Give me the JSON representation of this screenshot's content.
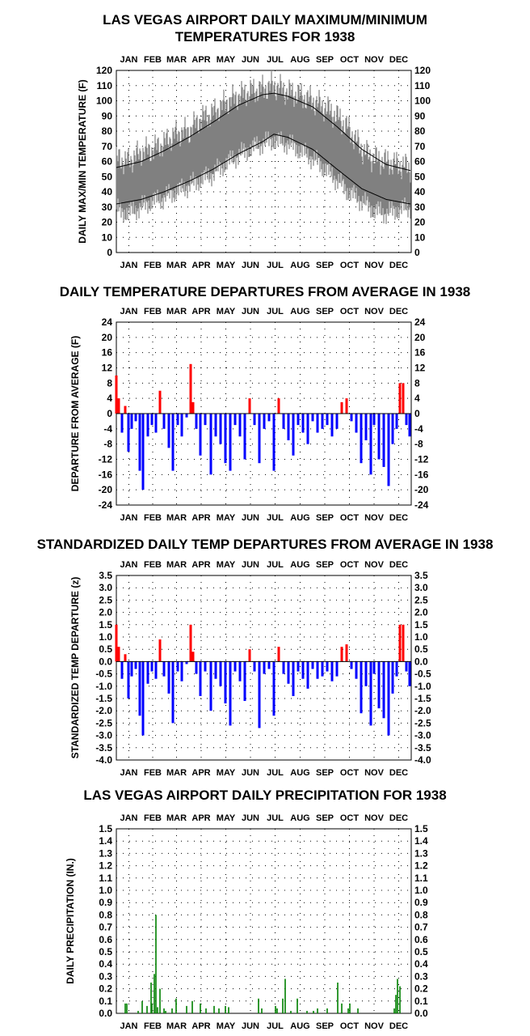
{
  "chart_data": [
    {
      "type": "area",
      "title": [
        "LAS VEGAS AIRPORT DAILY MAXIMUM/MINIMUM",
        "TEMPERATURES FOR 1938"
      ],
      "ylabel": "DAILY MAX/MIN TEMPERATURE (F)",
      "months": [
        "JAN",
        "FEB",
        "MAR",
        "APR",
        "MAY",
        "JUN",
        "JUL",
        "AUG",
        "SEP",
        "OCT",
        "NOV",
        "DEC"
      ],
      "ylim": [
        0,
        120
      ],
      "yticks": [
        "0",
        "10",
        "20",
        "30",
        "40",
        "50",
        "60",
        "70",
        "80",
        "90",
        "100",
        "110",
        "120"
      ],
      "grid": true,
      "series": [
        {
          "role": "observed max/min range band",
          "color": "#808080",
          "x": [
            1,
            15,
            32,
            46,
            60,
            74,
            91,
            105,
            121,
            135,
            152,
            166,
            182,
            196,
            213,
            227,
            244,
            258,
            274,
            288,
            305,
            319,
            335,
            349,
            365
          ],
          "max": [
            62,
            60,
            66,
            68,
            72,
            78,
            80,
            88,
            92,
            98,
            103,
            106,
            108,
            110,
            106,
            104,
            100,
            96,
            90,
            82,
            68,
            62,
            60,
            58,
            56
          ],
          "min": [
            28,
            26,
            30,
            34,
            36,
            40,
            44,
            48,
            52,
            58,
            64,
            68,
            72,
            74,
            72,
            68,
            62,
            56,
            48,
            40,
            34,
            28,
            26,
            28,
            30
          ]
        },
        {
          "role": "normal maximum",
          "color": "#000000",
          "x": [
            1,
            32,
            60,
            91,
            121,
            152,
            182,
            196,
            213,
            244,
            274,
            305,
            335,
            365
          ],
          "y": [
            56,
            60,
            67,
            76,
            86,
            97,
            104,
            105,
            103,
            96,
            83,
            68,
            58,
            54
          ]
        },
        {
          "role": "normal minimum",
          "color": "#000000",
          "x": [
            1,
            32,
            60,
            91,
            121,
            152,
            182,
            196,
            213,
            244,
            274,
            305,
            335,
            365
          ],
          "y": [
            32,
            35,
            40,
            47,
            55,
            65,
            73,
            78,
            76,
            68,
            55,
            42,
            35,
            32
          ]
        }
      ]
    },
    {
      "type": "bar",
      "title": [
        "DAILY TEMPERATURE DEPARTURES FROM AVERAGE IN 1938"
      ],
      "ylabel": "DEPARTURE FROM AVERAGE (F)",
      "months": [
        "JAN",
        "FEB",
        "MAR",
        "APR",
        "MAY",
        "JUN",
        "JUL",
        "AUG",
        "SEP",
        "OCT",
        "NOV",
        "DEC"
      ],
      "ylim": [
        -24,
        24
      ],
      "yticks": [
        "-24",
        "-20",
        "-16",
        "-12",
        "-8",
        "-4",
        "0",
        "4",
        "8",
        "12",
        "16",
        "20",
        "24"
      ],
      "grid": true,
      "colors": {
        "positive": "#ff0000",
        "negative": "#0000ff"
      },
      "x": [
        1,
        4,
        8,
        12,
        16,
        20,
        25,
        30,
        34,
        40,
        45,
        50,
        55,
        60,
        66,
        71,
        77,
        82,
        88,
        93,
        96,
        100,
        105,
        111,
        118,
        124,
        130,
        136,
        142,
        148,
        154,
        160,
        166,
        172,
        178,
        184,
        190,
        196,
        202,
        208,
        214,
        220,
        226,
        232,
        238,
        244,
        250,
        256,
        262,
        268,
        274,
        280,
        286,
        292,
        298,
        304,
        310,
        316,
        320,
        326,
        332,
        338,
        343,
        348,
        352,
        356,
        360,
        364
      ],
      "values": [
        10,
        4,
        -5,
        2,
        -10,
        -4,
        -2,
        -15,
        -20,
        -6,
        -3,
        -5,
        6,
        -4,
        -9,
        -15,
        -3,
        -6,
        -1,
        13,
        3,
        -4,
        -11,
        -3,
        -16,
        -6,
        -8,
        -13,
        -15,
        -3,
        -6,
        -12,
        4,
        -3,
        -13,
        -4,
        -2,
        -15,
        4,
        -4,
        -7,
        -11,
        -3,
        -5,
        -8,
        -2,
        -5,
        -4,
        -3,
        -6,
        -4,
        3,
        4,
        -2,
        -5,
        -13,
        -7,
        -16,
        -3,
        -12,
        -14,
        -19,
        -8,
        -4,
        8,
        8,
        -3,
        -6
      ]
    },
    {
      "type": "bar",
      "title": [
        "STANDARDIZED DAILY TEMP DEPARTURES FROM AVERAGE IN 1938"
      ],
      "ylabel": "STANDARDIZED TEMP DEPARTURE (z)",
      "months": [
        "JAN",
        "FEB",
        "MAR",
        "APR",
        "MAY",
        "JUN",
        "JUL",
        "AUG",
        "SEP",
        "OCT",
        "NOV",
        "DEC"
      ],
      "ylim": [
        -4,
        3.5
      ],
      "yticks": [
        "-4.0",
        "-3.5",
        "-3.0",
        "-2.5",
        "-2.0",
        "-1.5",
        "-1.0",
        "-0.5",
        "0.0",
        "0.5",
        "1.0",
        "1.5",
        "2.0",
        "2.5",
        "3.0",
        "3.5"
      ],
      "grid": true,
      "colors": {
        "positive": "#ff0000",
        "negative": "#0000ff"
      },
      "x": [
        1,
        4,
        8,
        12,
        16,
        20,
        25,
        30,
        34,
        40,
        45,
        50,
        55,
        60,
        66,
        71,
        77,
        82,
        88,
        93,
        96,
        100,
        105,
        111,
        118,
        124,
        130,
        136,
        142,
        148,
        154,
        160,
        166,
        172,
        178,
        184,
        190,
        196,
        202,
        208,
        214,
        220,
        226,
        232,
        238,
        244,
        250,
        256,
        262,
        268,
        274,
        280,
        286,
        292,
        298,
        304,
        310,
        316,
        320,
        326,
        332,
        338,
        343,
        348,
        352,
        356,
        360,
        364
      ],
      "values": [
        1.5,
        0.6,
        -0.7,
        0.3,
        -1.5,
        -0.6,
        -0.3,
        -2.2,
        -3.0,
        -0.9,
        -0.4,
        -0.7,
        0.9,
        -0.6,
        -1.3,
        -2.5,
        -0.4,
        -0.8,
        -0.1,
        1.5,
        0.4,
        -0.5,
        -1.4,
        -0.4,
        -2.0,
        -0.7,
        -1.0,
        -1.7,
        -2.6,
        -0.4,
        -0.8,
        -1.6,
        0.5,
        -0.4,
        -2.7,
        -0.5,
        -0.3,
        -2.2,
        0.6,
        -0.5,
        -0.9,
        -1.4,
        -0.4,
        -0.7,
        -1.1,
        -0.3,
        -0.7,
        -0.6,
        -0.4,
        -0.8,
        -0.6,
        0.6,
        0.7,
        -0.3,
        -0.7,
        -2.1,
        -1.0,
        -2.6,
        -0.5,
        -1.9,
        -2.3,
        -3.0,
        -1.3,
        -0.6,
        1.5,
        1.5,
        -0.4,
        -1.0
      ]
    },
    {
      "type": "bar",
      "title": [
        "LAS VEGAS AIRPORT DAILY PRECIPITATION FOR 1938"
      ],
      "ylabel": "DAILY PRECIPITATION (IN.)",
      "months": [
        "JAN",
        "FEB",
        "MAR",
        "APR",
        "MAY",
        "JUN",
        "JUL",
        "AUG",
        "SEP",
        "OCT",
        "NOV",
        "DEC"
      ],
      "ylim": [
        0,
        1.5
      ],
      "yticks": [
        "0.0",
        "0.1",
        "0.2",
        "0.3",
        "0.4",
        "0.5",
        "0.6",
        "0.7",
        "0.8",
        "0.9",
        "1.0",
        "1.1",
        "1.2",
        "1.3",
        "1.4",
        "1.5"
      ],
      "grid": true,
      "colors": {
        "bar": "#008000"
      },
      "x": [
        12,
        14,
        28,
        33,
        39,
        44,
        45,
        48,
        50,
        52,
        55,
        60,
        62,
        70,
        75,
        88,
        95,
        105,
        112,
        122,
        128,
        136,
        140,
        177,
        181,
        198,
        200,
        207,
        210,
        217,
        225,
        237,
        245,
        250,
        262,
        275,
        280,
        288,
        290,
        300,
        345,
        347,
        349,
        352
      ],
      "values": [
        0.08,
        0.08,
        0.02,
        0.1,
        0.06,
        0.25,
        0.08,
        0.32,
        0.8,
        0.05,
        0.2,
        0.04,
        0.02,
        0.04,
        0.12,
        0.06,
        0.1,
        0.08,
        0.04,
        0.06,
        0.04,
        0.06,
        0.05,
        0.12,
        0.04,
        0.06,
        0.04,
        0.12,
        0.28,
        0.02,
        0.12,
        0.02,
        0.02,
        0.04,
        0.04,
        0.25,
        0.08,
        0.04,
        0.08,
        0.04,
        0.04,
        0.15,
        0.28,
        0.22
      ]
    }
  ]
}
